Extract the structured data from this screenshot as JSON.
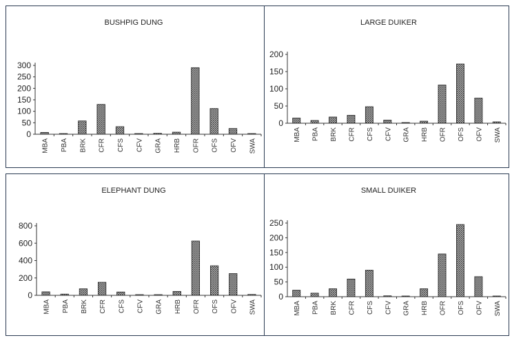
{
  "chart_data": [
    {
      "type": "bar",
      "title": "BUSHPIG DUNG",
      "categories": [
        "MBA",
        "PBA",
        "BRK",
        "CFR",
        "CFS",
        "CFV",
        "GRA",
        "HRB",
        "OFR",
        "OFS",
        "OFV",
        "SWA"
      ],
      "values": [
        8,
        2,
        58,
        130,
        33,
        3,
        4,
        9,
        290,
        112,
        25,
        2
      ],
      "yticks": [
        0,
        50,
        100,
        150,
        200,
        250,
        300
      ],
      "ylim": [
        0,
        300
      ]
    },
    {
      "type": "bar",
      "title": "LARGE DUIKER",
      "categories": [
        "MBA",
        "PBA",
        "BRK",
        "CFR",
        "CFS",
        "CFV",
        "GRA",
        "HRB",
        "OFR",
        "OFS",
        "OFV",
        "SWA"
      ],
      "values": [
        15,
        8,
        18,
        23,
        48,
        9,
        1,
        6,
        111,
        172,
        73,
        4
      ],
      "yticks": [
        0,
        50,
        100,
        150,
        200
      ],
      "ylim": [
        0,
        200
      ]
    },
    {
      "type": "bar",
      "title": "ELEPHANT DUNG",
      "categories": [
        "MBA",
        "PBA",
        "BRK",
        "CFR",
        "CFS",
        "CFV",
        "GRA",
        "HRB",
        "OFR",
        "OFS",
        "OFV",
        "SWA"
      ],
      "values": [
        40,
        14,
        75,
        150,
        38,
        8,
        2,
        45,
        625,
        340,
        250,
        10
      ],
      "yticks": [
        0,
        200,
        400,
        600,
        800
      ],
      "ylim": [
        0,
        800
      ]
    },
    {
      "type": "bar",
      "title": "SMALL DUIKER",
      "categories": [
        "MBA",
        "PBA",
        "BRK",
        "CFR",
        "CFS",
        "CFV",
        "GRA",
        "HRB",
        "OFR",
        "OFS",
        "OFV",
        "SWA"
      ],
      "values": [
        22,
        12,
        27,
        60,
        90,
        3,
        1,
        27,
        145,
        245,
        68,
        2
      ],
      "yticks": [
        0,
        50,
        100,
        150,
        200,
        250
      ],
      "ylim": [
        0,
        250
      ]
    }
  ]
}
